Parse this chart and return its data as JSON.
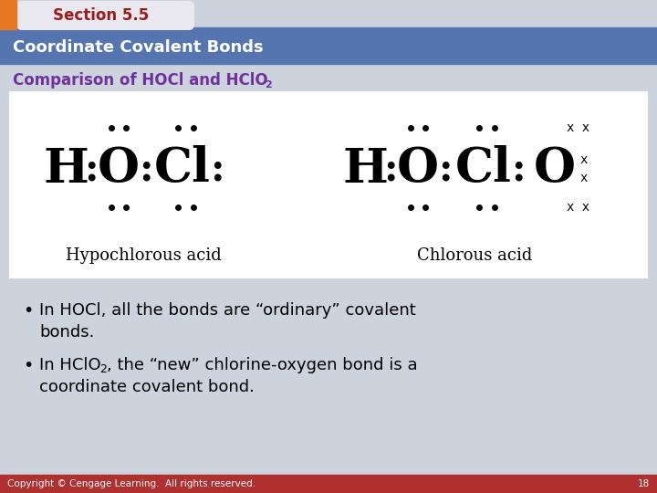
{
  "title_tab": "Section 5.5",
  "header": "Coordinate Covalent Bonds",
  "bg_color": "#cdd3dc",
  "header_bg": "#5575b0",
  "tab_bg": "#e8e8ee",
  "tab_text_color": "#9b1c1c",
  "header_text_color": "#ffffff",
  "subtitle_color": "#7030a0",
  "footer_bg": "#b03030",
  "footer_text": "Copyright © Cengage Learning.  All rights reserved.",
  "footer_page": "18",
  "orange_bar_color": "#e87722",
  "diagram_bg": "#ffffff",
  "bullet1_line1": "In HOCl, all the bonds are “ordinary” covalent",
  "bullet1_line2": "bonds.",
  "bullet2_line1": "In HClO",
  "bullet2_sub": "2",
  "bullet2_line1b": ", the “new” chlorine-oxygen bond is a",
  "bullet2_line2": "coordinate covalent bond.",
  "label_left": "Hypochlorous acid",
  "label_right": "Chlorous acid"
}
